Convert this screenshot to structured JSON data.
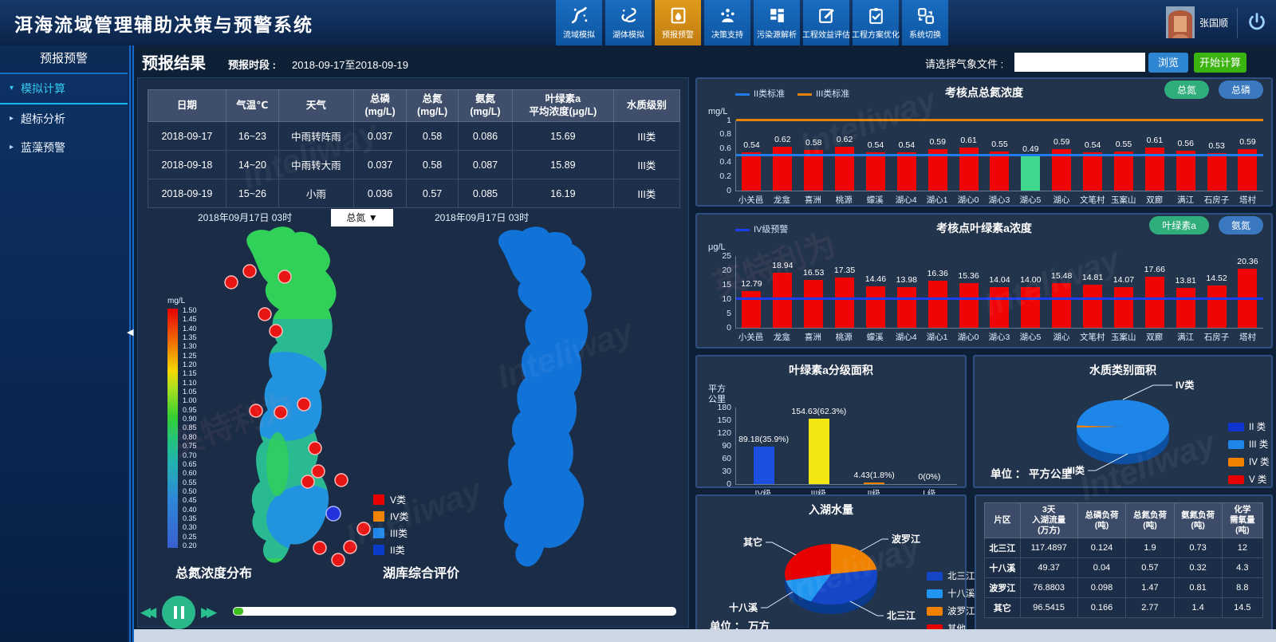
{
  "watermark": "Inteliway",
  "watermark_cn": "英特利为",
  "header": {
    "title": "洱海流域管理辅助决策与预警系统",
    "nav": [
      {
        "label": "流域模拟",
        "icon": "basin-sim-icon",
        "active": false
      },
      {
        "label": "湖体模拟",
        "icon": "lake-sim-icon",
        "active": false
      },
      {
        "label": "预报预警",
        "icon": "forecast-warning-icon",
        "active": true
      },
      {
        "label": "决策支持",
        "icon": "decision-support-icon",
        "active": false
      },
      {
        "label": "污染源解析",
        "icon": "pollution-source-icon",
        "active": false
      },
      {
        "label": "工程效益评估",
        "icon": "project-benefit-icon",
        "active": false
      },
      {
        "label": "工程方案优化",
        "icon": "project-plan-icon",
        "active": false
      },
      {
        "label": "系统切换",
        "icon": "system-switch-icon",
        "active": false
      }
    ],
    "user_name": "张国顺"
  },
  "sidebar": {
    "title": "预报预警",
    "items": [
      {
        "label": "模拟计算",
        "active": true
      },
      {
        "label": "超标分析",
        "active": false
      },
      {
        "label": "蓝藻预警",
        "active": false
      }
    ]
  },
  "toolbar": {
    "page_title": "预报结果",
    "period_label": "预报时段 :",
    "period_value": "2018-09-17至2018-09-19",
    "file_label": "请选择气象文件 :",
    "file_value": "",
    "browse_label": "浏览",
    "start_label": "开始计算"
  },
  "forecast_table": {
    "headers": [
      [
        "日期"
      ],
      [
        "气温℃"
      ],
      [
        "天气"
      ],
      [
        "总磷",
        "(mg/L)"
      ],
      [
        "总氮",
        "(mg/L)"
      ],
      [
        "氨氮",
        "(mg/L)"
      ],
      [
        "叶绿素a",
        "平均浓度(μg/L)"
      ],
      [
        "水质级别"
      ]
    ],
    "rows": [
      [
        "2018-09-17",
        "16~23",
        "中雨转阵雨",
        "0.037",
        "0.58",
        "0.086",
        "15.69",
        "III类"
      ],
      [
        "2018-09-18",
        "14~20",
        "中雨转大雨",
        "0.037",
        "0.58",
        "0.087",
        "15.89",
        "III类"
      ],
      [
        "2018-09-19",
        "15~26",
        "小雨",
        "0.036",
        "0.57",
        "0.085",
        "16.19",
        "III类"
      ]
    ]
  },
  "maps": {
    "left": {
      "datetime": "2018年09月17日 03时",
      "dropdown_value": "总氮 ▼",
      "caption": "总氮浓度分布",
      "scale_unit": "mg/L",
      "scale_values": [
        "1.50",
        "1.45",
        "1.40",
        "1.35",
        "1.30",
        "1.25",
        "1.20",
        "1.15",
        "1.10",
        "1.05",
        "1.00",
        "0.95",
        "0.90",
        "0.85",
        "0.80",
        "0.75",
        "0.70",
        "0.65",
        "0.60",
        "0.55",
        "0.50",
        "0.45",
        "0.40",
        "0.35",
        "0.30",
        "0.25",
        "0.20"
      ]
    },
    "right": {
      "datetime": "2018年09月17日 03时",
      "caption": "湖库综合评价"
    },
    "class_legend": [
      {
        "label": "V类",
        "color": "#e80000"
      },
      {
        "label": "IV类",
        "color": "#f08200"
      },
      {
        "label": "III类",
        "color": "#1e86e8"
      },
      {
        "label": "II类",
        "color": "#0a3cc8"
      }
    ]
  },
  "chart_data": [
    {
      "type": "bar",
      "title": "考核点总氮浓度",
      "ylabel": "mg/L",
      "ylim": [
        0,
        1
      ],
      "yticks": [
        0,
        0.2,
        0.4,
        0.6,
        0.8,
        1
      ],
      "ref_lines": [
        {
          "label": "II类标准",
          "value": 0.5,
          "color": "#1e7ce8"
        },
        {
          "label": "III类标准",
          "value": 1,
          "color": "#e2830b"
        }
      ],
      "buttons": [
        {
          "label": "总氮",
          "style": "green"
        },
        {
          "label": "总磷",
          "style": "blue"
        }
      ],
      "categories": [
        "小关邑",
        "龙龛",
        "喜洲",
        "桃源",
        "蠓溪",
        "湖心4",
        "湖心1",
        "湖心0",
        "湖心3",
        "湖心5",
        "湖心",
        "文笔村",
        "玉案山",
        "双廊",
        "满江",
        "石房子",
        "塔村"
      ],
      "values": [
        "0.54",
        "0.62",
        "0.58",
        "0.62",
        "0.54",
        "0.54",
        "0.59",
        "0.61",
        "0.55",
        "0.49",
        "0.59",
        "0.54",
        "0.55",
        "0.61",
        "0.56",
        "0.53",
        "0.59"
      ],
      "bar_color": "#f00505",
      "highlight": {
        "index": 9,
        "color": "#3fd68d"
      }
    },
    {
      "type": "bar",
      "title": "考核点叶绿素a浓度",
      "ylabel": "μg/L",
      "ylim": [
        0,
        25
      ],
      "yticks": [
        0,
        5,
        10,
        15,
        20,
        25
      ],
      "ref_lines": [
        {
          "label": "IV级预警",
          "value": 10,
          "color": "#1b3ef0"
        }
      ],
      "buttons": [
        {
          "label": "叶绿素a",
          "style": "green"
        },
        {
          "label": "氨氮",
          "style": "blue"
        }
      ],
      "categories": [
        "小关邑",
        "龙龛",
        "喜洲",
        "桃源",
        "蠓溪",
        "湖心4",
        "湖心1",
        "湖心0",
        "湖心3",
        "湖心5",
        "湖心",
        "文笔村",
        "玉案山",
        "双廊",
        "满江",
        "石房子",
        "塔村"
      ],
      "values": [
        "12.79",
        "18.94",
        "16.53",
        "17.35",
        "14.46",
        "13.98",
        "16.36",
        "15.36",
        "14.04",
        "14.00",
        "15.48",
        "14.81",
        "14.07",
        "17.66",
        "13.81",
        "14.52",
        "20.36"
      ],
      "bar_color": "#f00505"
    },
    {
      "type": "bar",
      "title": "叶绿素a分级面积",
      "ylabel_lines": [
        "平方",
        "公里"
      ],
      "ylim": [
        0,
        180
      ],
      "yticks": [
        0,
        30,
        60,
        90,
        120,
        150,
        180
      ],
      "categories": [
        "IV级",
        "III级",
        "II级",
        "I 级"
      ],
      "values": [
        "89.18",
        "154.63",
        "4.43",
        "0"
      ],
      "value_labels": [
        "89.18(35.9%)",
        "154.63(62.3%)",
        "4.43(1.8%)",
        "0(0%)"
      ],
      "bar_colors": [
        "#1c50e0",
        "#f2e713",
        "#f08200",
        "#808080"
      ]
    },
    {
      "type": "pie",
      "title": "水质类别面积",
      "unit_label": "单位 ：",
      "unit": "平方公里",
      "slices": [
        {
          "label": "IV类",
          "pct": 1.3,
          "color": "#f08200"
        },
        {
          "label": "III类",
          "pct": 98.7,
          "color": "#1e86e8"
        }
      ],
      "legend": [
        {
          "label": "II 类",
          "color": "#1034d0"
        },
        {
          "label": "III 类",
          "color": "#1e86e8"
        },
        {
          "label": "IV 类",
          "color": "#f08200"
        },
        {
          "label": "V 类",
          "color": "#e80000"
        }
      ]
    },
    {
      "type": "pie",
      "title": "入湖水量",
      "unit_label": "单位 ：",
      "unit": "万方",
      "slices": [
        {
          "label": "波罗江",
          "value": 76.8803,
          "color": "#f08200"
        },
        {
          "label": "北三江",
          "value": 117.4897,
          "color": "#1546c8"
        },
        {
          "label": "十八溪",
          "value": 49.37,
          "color": "#2196f0"
        },
        {
          "label": "其它",
          "value": 96.5415,
          "color": "#e80000"
        }
      ],
      "legend": [
        {
          "label": "北三江",
          "color": "#1546c8"
        },
        {
          "label": "十八溪",
          "color": "#2196f0"
        },
        {
          "label": "波罗江",
          "color": "#f08200"
        },
        {
          "label": "其他",
          "color": "#e80000"
        }
      ]
    }
  ],
  "load_table": {
    "headers": [
      [
        "片区"
      ],
      [
        "3天",
        "入湖流量",
        "(万方)"
      ],
      [
        "总磷负荷",
        "(吨)"
      ],
      [
        "总氮负荷",
        "(吨)"
      ],
      [
        "氨氮负荷",
        "(吨)"
      ],
      [
        "化学",
        "需氧量",
        "(吨)"
      ]
    ],
    "rows": [
      [
        "北三江",
        "117.4897",
        "0.124",
        "1.9",
        "0.73",
        "12"
      ],
      [
        "十八溪",
        "49.37",
        "0.04",
        "0.57",
        "0.32",
        "4.3"
      ],
      [
        "波罗江",
        "76.8803",
        "0.098",
        "1.47",
        "0.81",
        "8.8"
      ],
      [
        "其它",
        "96.5415",
        "0.166",
        "2.77",
        "1.4",
        "14.5"
      ]
    ]
  }
}
